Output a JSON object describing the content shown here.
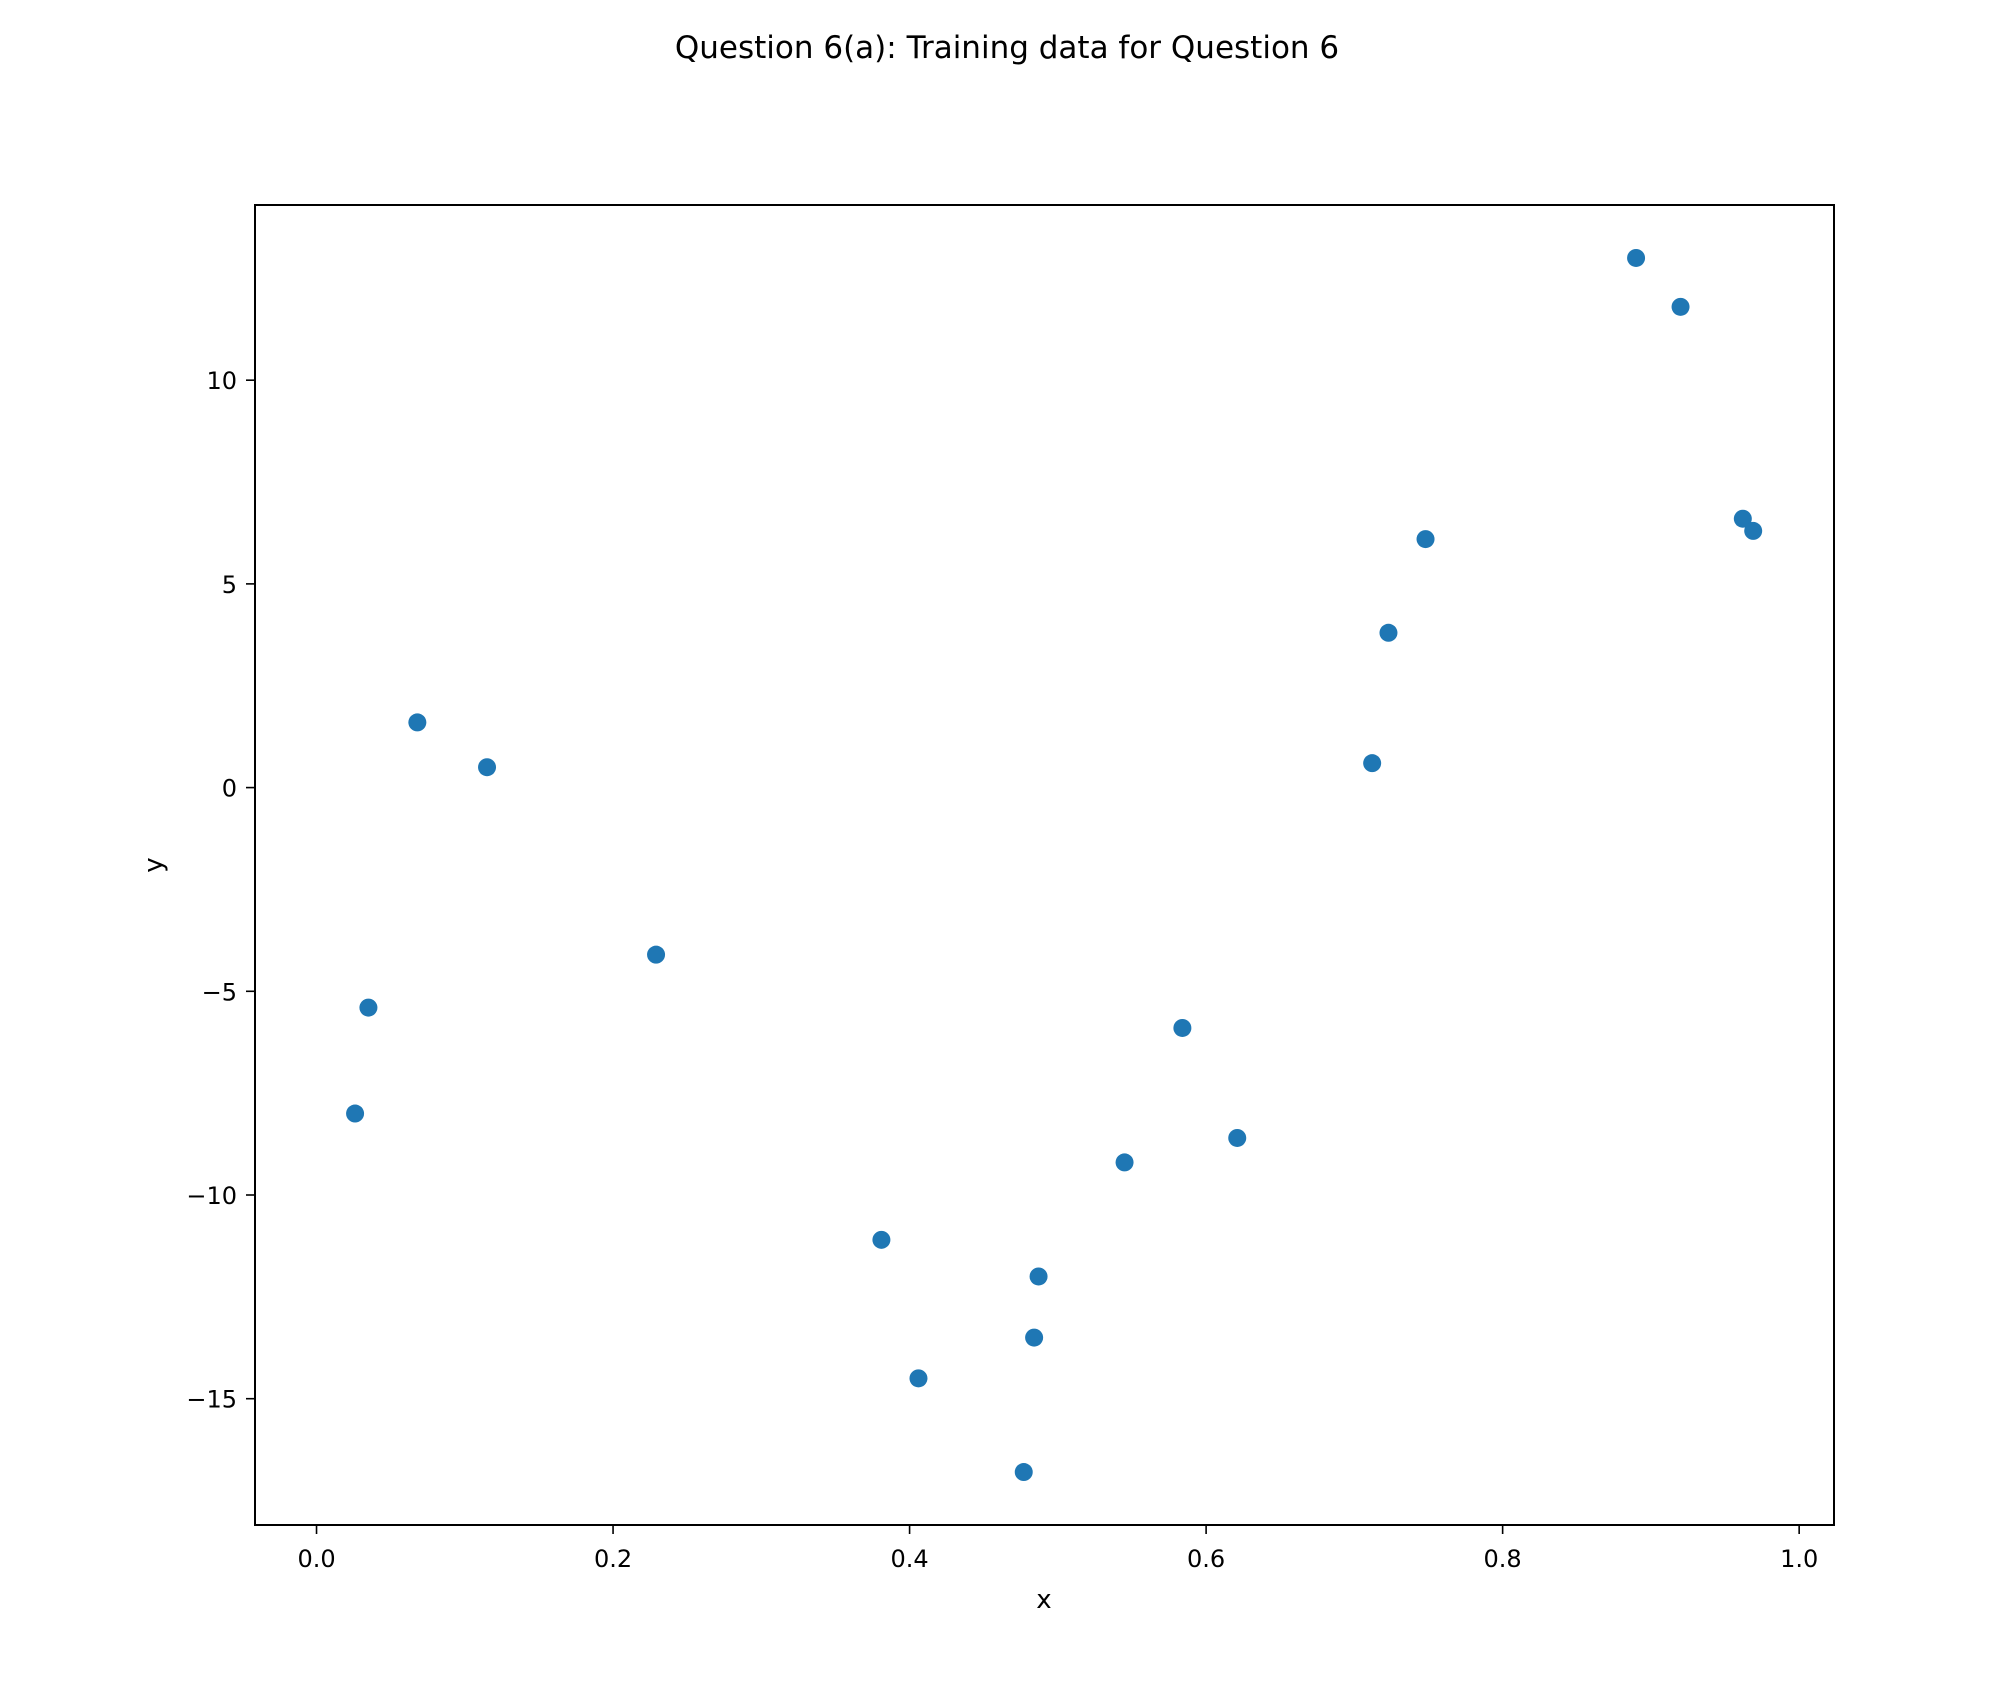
{
  "chart_data": {
    "type": "scatter",
    "title": "Question 6(a): Training data for Question 6",
    "xlabel": "x",
    "ylabel": "y",
    "xlim": [
      -0.0415,
      1.0235
    ],
    "ylim": [
      -18.1,
      14.3
    ],
    "xticks": [
      0.0,
      0.2,
      0.4,
      0.6,
      0.8,
      1.0
    ],
    "xtick_labels": [
      "0.0",
      "0.2",
      "0.4",
      "0.6",
      "0.8",
      "1.0"
    ],
    "yticks": [
      10,
      5,
      0,
      -5,
      -10,
      -15
    ],
    "ytick_labels": [
      "10",
      "5",
      "0",
      "−5",
      "−10",
      "−15"
    ],
    "grid": false,
    "legend": "none",
    "marker_color": "#1f77b4",
    "points": [
      {
        "x": 0.026,
        "y": -8.0
      },
      {
        "x": 0.035,
        "y": -5.4
      },
      {
        "x": 0.068,
        "y": 1.6
      },
      {
        "x": 0.115,
        "y": 0.5
      },
      {
        "x": 0.229,
        "y": -4.1
      },
      {
        "x": 0.381,
        "y": -11.1
      },
      {
        "x": 0.406,
        "y": -14.5
      },
      {
        "x": 0.477,
        "y": -16.8
      },
      {
        "x": 0.484,
        "y": -13.5
      },
      {
        "x": 0.487,
        "y": -12.0
      },
      {
        "x": 0.545,
        "y": -9.2
      },
      {
        "x": 0.584,
        "y": -5.9
      },
      {
        "x": 0.621,
        "y": -8.6
      },
      {
        "x": 0.712,
        "y": 0.6
      },
      {
        "x": 0.723,
        "y": 3.8
      },
      {
        "x": 0.748,
        "y": 6.1
      },
      {
        "x": 0.89,
        "y": 13.0
      },
      {
        "x": 0.92,
        "y": 11.8
      },
      {
        "x": 0.962,
        "y": 6.6
      },
      {
        "x": 0.969,
        "y": 6.3
      }
    ]
  }
}
